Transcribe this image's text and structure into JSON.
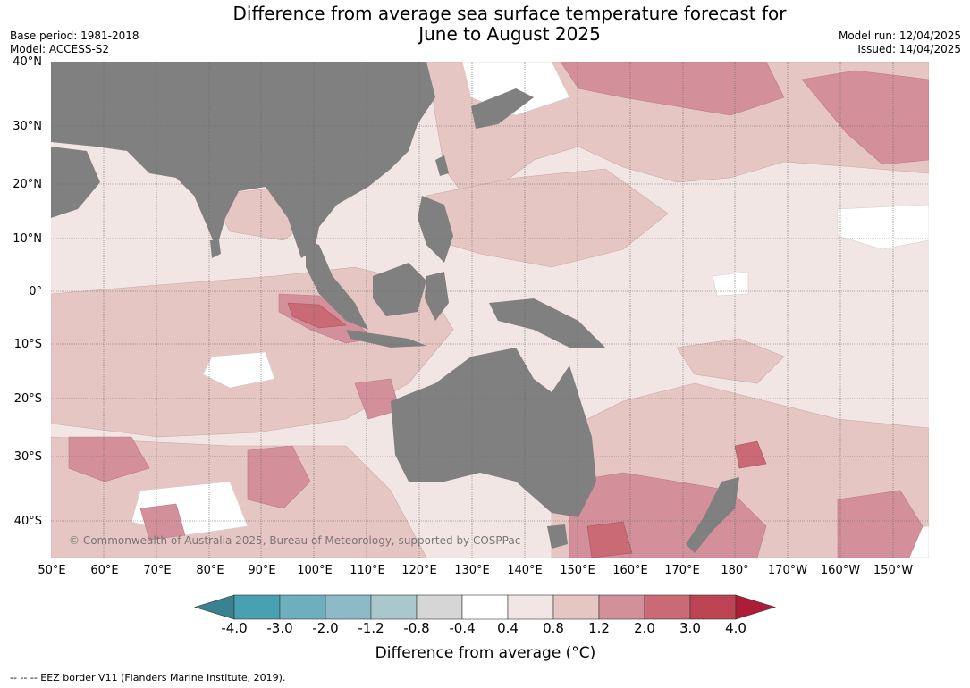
{
  "title": {
    "line1": "Difference from average sea surface temperature forecast for",
    "line2": "June to August 2025"
  },
  "meta_left": {
    "base_period": "Base period: 1981-2018",
    "model": "Model: ACCESS-S2"
  },
  "meta_right": {
    "model_run": "Model run: 12/04/2025",
    "issued": "Issued: 14/04/2025"
  },
  "map": {
    "latitude_labels": [
      "40°N",
      "30°N",
      "20°N",
      "10°N",
      "0°",
      "10°S",
      "20°S",
      "30°S",
      "40°S"
    ],
    "longitude_labels": [
      "50°E",
      "60°E",
      "70°E",
      "80°E",
      "90°E",
      "100°E",
      "110°E",
      "120°E",
      "130°E",
      "140°E",
      "150°E",
      "160°E",
      "170°E",
      "180°",
      "170°W",
      "160°W",
      "150°W"
    ],
    "copyright": "© Commonwealth of Australia 2025, Bureau of Meteorology, supported by COSPPac",
    "colors": {
      "land": "#808080",
      "background_anomaly": "#f2e6e5",
      "warm_1": "#e6c6c2",
      "warm_2": "#d4909a",
      "warm_3": "#c96a75"
    }
  },
  "colorbar": {
    "ticks": [
      "-4.0",
      "-3.0",
      "-2.0",
      "-1.2",
      "-0.8",
      "-0.4",
      "0.4",
      "0.8",
      "1.2",
      "2.0",
      "3.0",
      "4.0"
    ],
    "colors": [
      "#3a8290",
      "#47a1b2",
      "#6dafbd",
      "#8cbac6",
      "#a9c8ce",
      "#d6d6d6",
      "#ffffff",
      "#f2e6e5",
      "#e6c6c2",
      "#d4909a",
      "#c96a75",
      "#bc4452",
      "#ad1d37"
    ],
    "title": "Difference from average (°C)"
  },
  "footnote": "-- -- -- EEZ border V11 (Flanders Marine Institute, 2019)."
}
